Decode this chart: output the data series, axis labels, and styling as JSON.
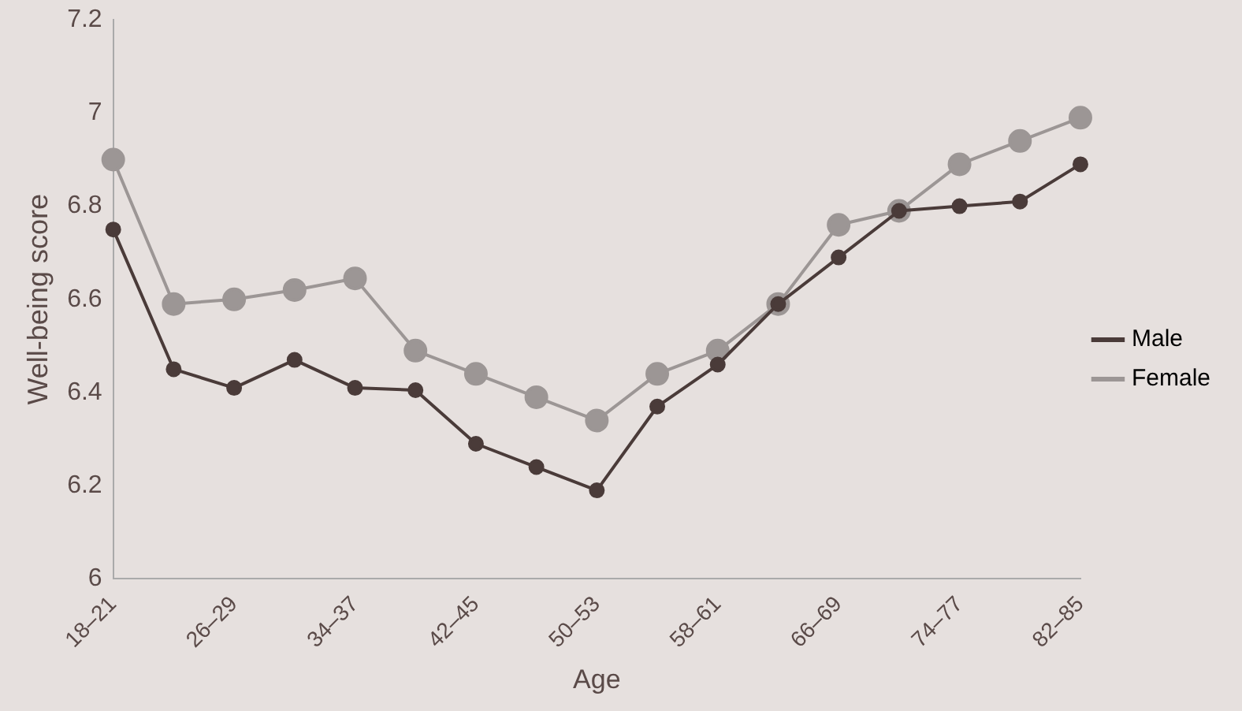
{
  "chart_data": {
    "type": "line",
    "xlabel": "Age",
    "ylabel": "Well-being score",
    "categories": [
      "18–21",
      null,
      "26–29",
      null,
      "34–37",
      null,
      "42–45",
      null,
      "50–53",
      null,
      "58–61",
      null,
      "66–69",
      null,
      "74–77",
      null,
      "82–85"
    ],
    "series": [
      {
        "name": "Male",
        "color": "#4a3b39",
        "values": [
          6.75,
          6.45,
          6.41,
          6.47,
          6.41,
          6.405,
          6.29,
          6.24,
          6.19,
          6.37,
          6.46,
          6.59,
          6.69,
          6.79,
          6.8,
          6.81,
          6.89
        ]
      },
      {
        "name": "Female",
        "color": "#9c9695",
        "values": [
          6.9,
          6.59,
          6.6,
          6.62,
          6.645,
          6.49,
          6.44,
          6.39,
          6.34,
          6.44,
          6.49,
          6.59,
          6.76,
          6.79,
          6.89,
          6.94,
          6.99
        ]
      }
    ],
    "ylim": [
      6,
      7.2
    ],
    "yticks": [
      6,
      6.2,
      6.4,
      6.6,
      6.8,
      7,
      7.2
    ],
    "grid": false,
    "legend": "right",
    "marker": "circle",
    "line_style": "solid"
  }
}
